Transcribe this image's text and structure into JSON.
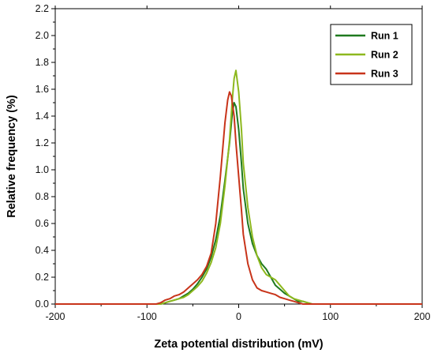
{
  "chart_data": {
    "type": "line",
    "title": "",
    "xlabel": "Zeta potential distribution (mV)",
    "ylabel": "Relative frequency (%)",
    "xlim": [
      -200,
      200
    ],
    "ylim": [
      0,
      2.2
    ],
    "xticks": [
      -200,
      -100,
      0,
      100,
      200
    ],
    "yticks": [
      "0.0",
      "0.2",
      "0.4",
      "0.6",
      "0.8",
      "1.0",
      "1.2",
      "1.4",
      "1.6",
      "1.8",
      "2.0",
      "2.2"
    ],
    "grid": false,
    "legend_position": "top-right",
    "series": [
      {
        "name": "Run 1",
        "color": "#1f7a1f",
        "x": [
          -200,
          -85,
          -80,
          -75,
          -70,
          -65,
          -60,
          -55,
          -50,
          -45,
          -40,
          -35,
          -30,
          -25,
          -20,
          -15,
          -10,
          -7,
          -5,
          -3,
          0,
          3,
          5,
          10,
          15,
          20,
          25,
          30,
          35,
          40,
          45,
          50,
          55,
          60,
          65,
          70,
          75,
          80,
          200
        ],
        "y": [
          0,
          0,
          0.01,
          0.02,
          0.03,
          0.04,
          0.06,
          0.08,
          0.11,
          0.15,
          0.2,
          0.26,
          0.35,
          0.48,
          0.66,
          0.92,
          1.2,
          1.42,
          1.5,
          1.47,
          1.3,
          1.05,
          0.86,
          0.6,
          0.45,
          0.36,
          0.3,
          0.26,
          0.2,
          0.14,
          0.11,
          0.08,
          0.06,
          0.04,
          0.02,
          0.02,
          0.01,
          0,
          0
        ]
      },
      {
        "name": "Run 2",
        "color": "#8db81e",
        "x": [
          -200,
          -85,
          -80,
          -75,
          -70,
          -65,
          -60,
          -55,
          -50,
          -45,
          -40,
          -35,
          -30,
          -25,
          -20,
          -15,
          -10,
          -7,
          -5,
          -3,
          0,
          3,
          5,
          10,
          15,
          20,
          25,
          30,
          35,
          40,
          45,
          50,
          55,
          60,
          65,
          70,
          75,
          80,
          200
        ],
        "y": [
          0,
          0,
          0.01,
          0.02,
          0.03,
          0.04,
          0.05,
          0.07,
          0.1,
          0.13,
          0.17,
          0.23,
          0.31,
          0.42,
          0.6,
          0.88,
          1.22,
          1.52,
          1.68,
          1.74,
          1.58,
          1.3,
          1.05,
          0.72,
          0.5,
          0.36,
          0.27,
          0.22,
          0.2,
          0.18,
          0.14,
          0.1,
          0.06,
          0.04,
          0.03,
          0.02,
          0.01,
          0,
          0
        ]
      },
      {
        "name": "Run 3",
        "color": "#c8341a",
        "x": [
          -200,
          -90,
          -85,
          -80,
          -75,
          -70,
          -65,
          -60,
          -55,
          -50,
          -45,
          -40,
          -35,
          -30,
          -25,
          -20,
          -15,
          -12,
          -10,
          -8,
          -5,
          -3,
          0,
          3,
          5,
          10,
          15,
          20,
          25,
          30,
          35,
          40,
          45,
          50,
          55,
          60,
          65,
          70,
          200
        ],
        "y": [
          0,
          0,
          0.01,
          0.03,
          0.04,
          0.06,
          0.07,
          0.09,
          0.12,
          0.15,
          0.18,
          0.22,
          0.28,
          0.38,
          0.6,
          0.95,
          1.35,
          1.52,
          1.58,
          1.55,
          1.4,
          1.2,
          0.95,
          0.7,
          0.52,
          0.3,
          0.18,
          0.12,
          0.1,
          0.09,
          0.08,
          0.07,
          0.05,
          0.04,
          0.03,
          0.02,
          0.01,
          0,
          0
        ]
      }
    ]
  }
}
